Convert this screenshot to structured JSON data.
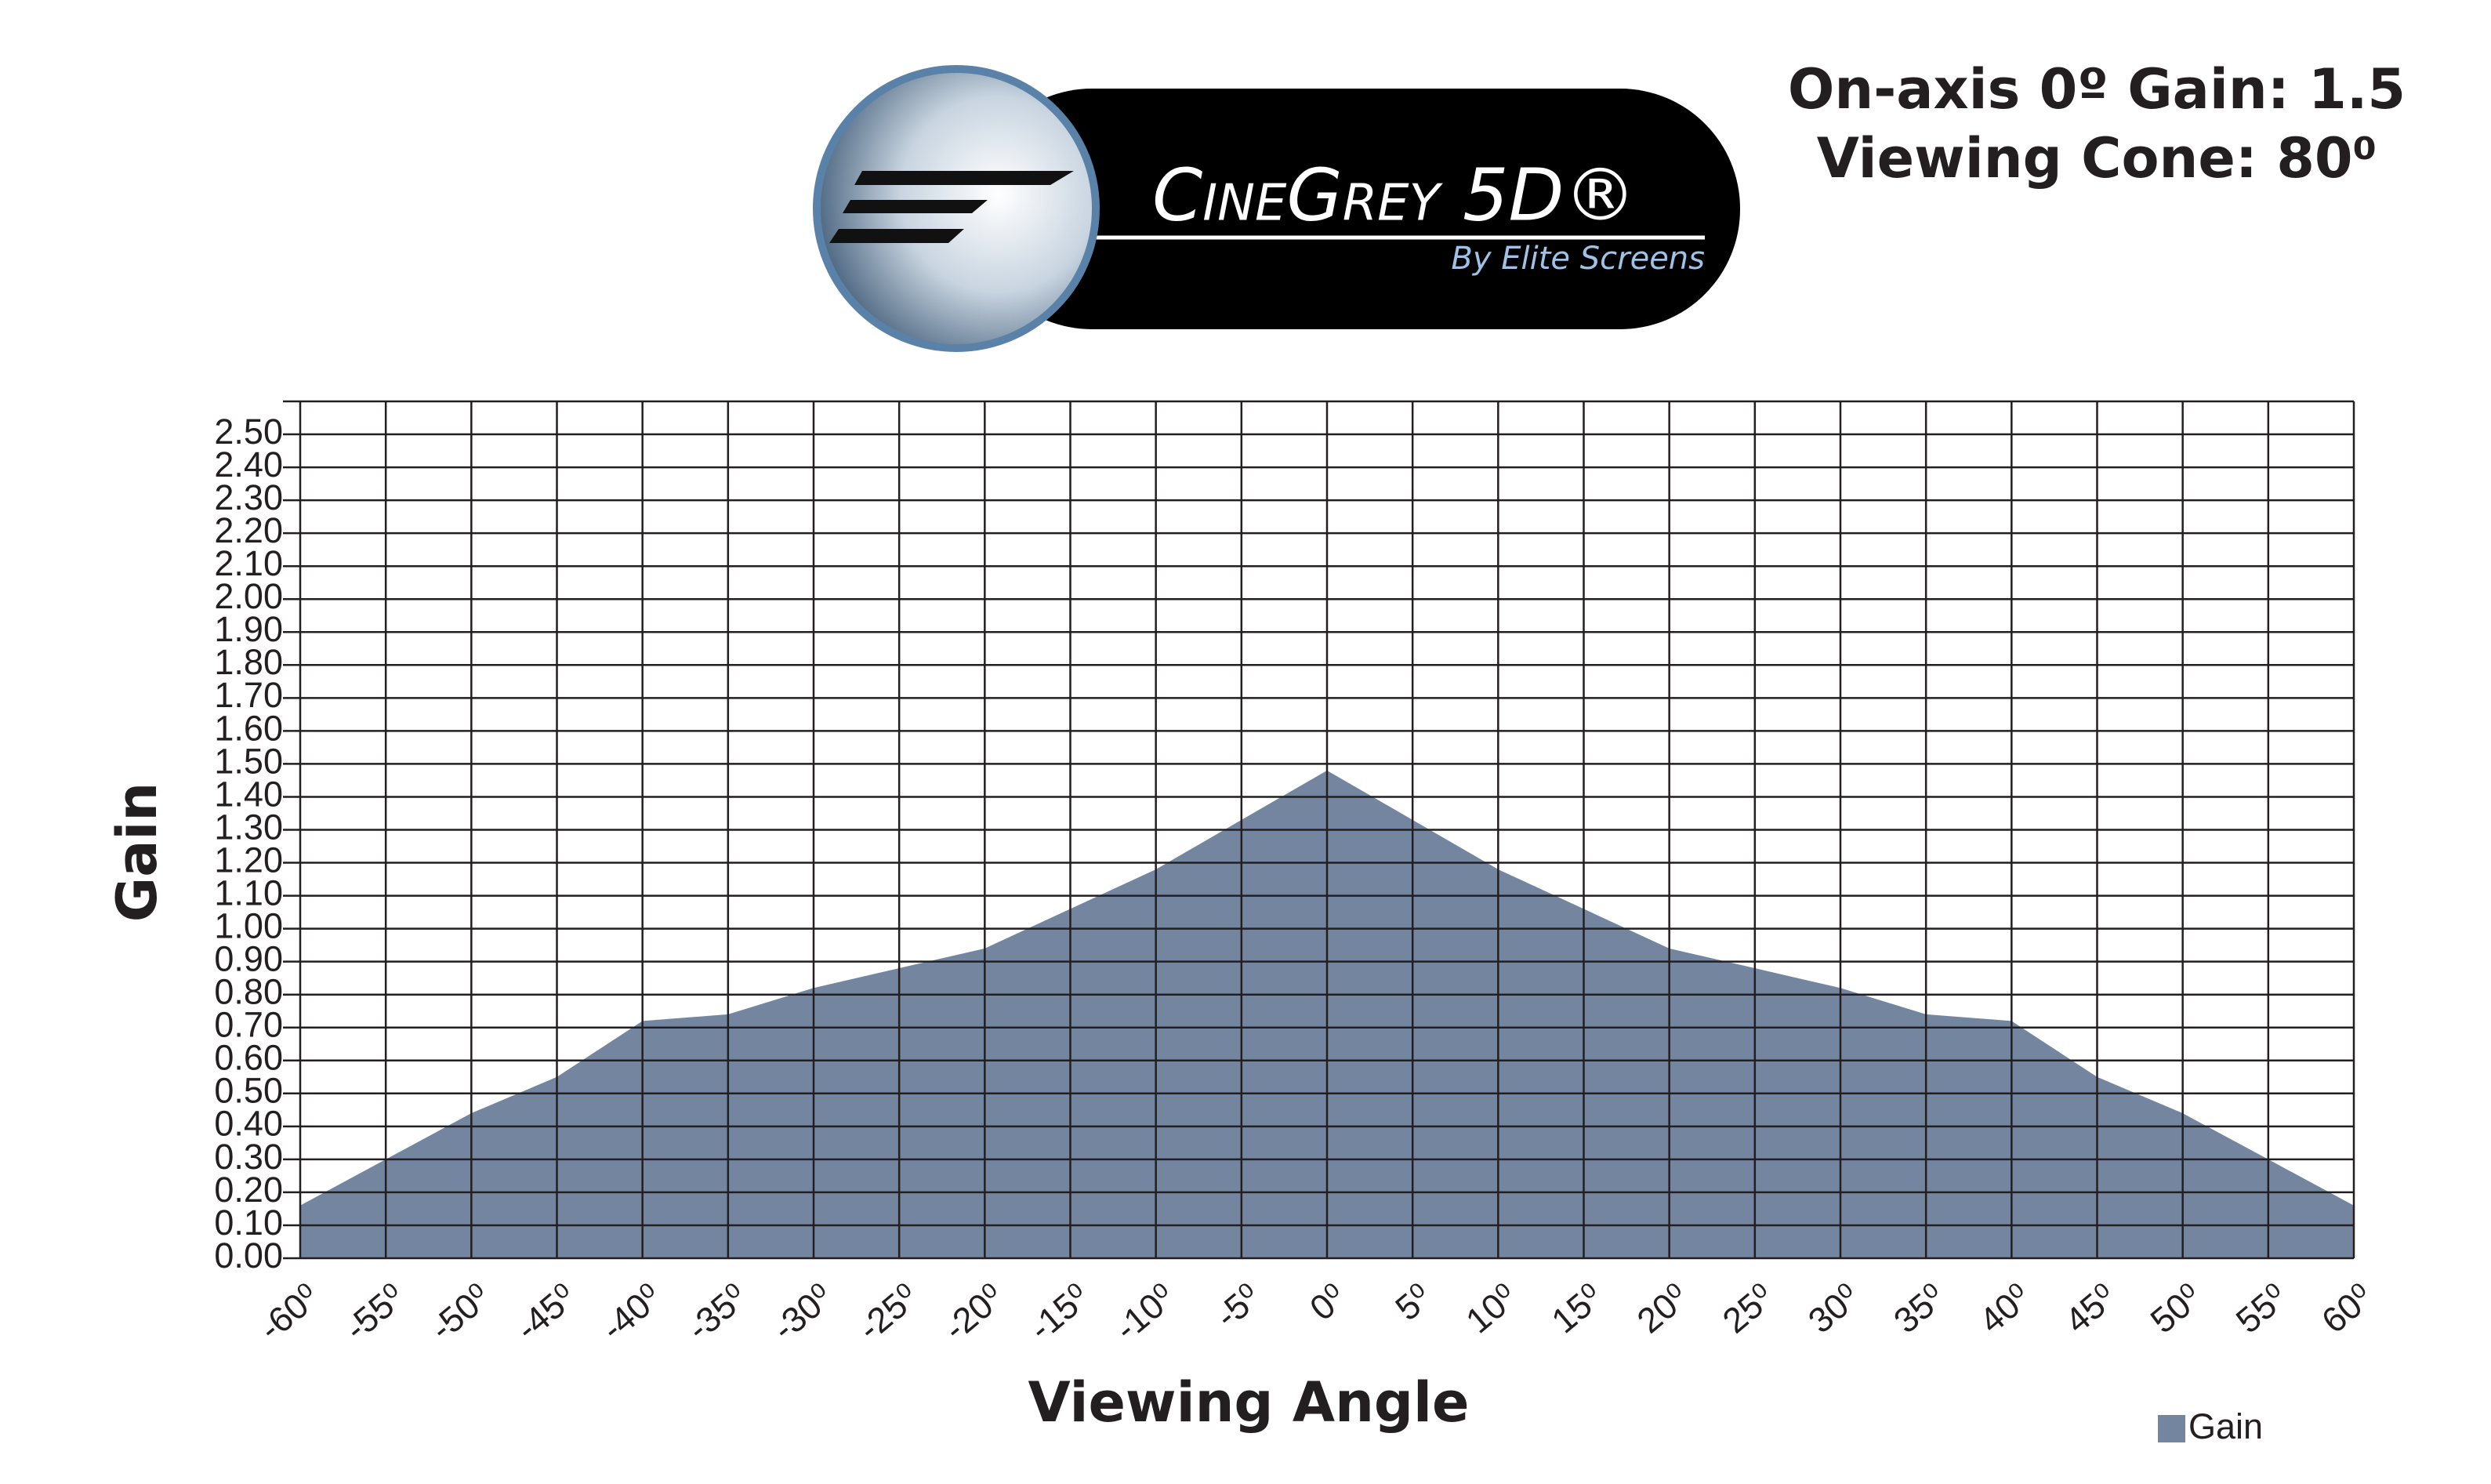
{
  "chart_data": {
    "type": "area",
    "logo_title": "CineGrey 5D®",
    "logo_subtitle": "By Elite Screens",
    "annotations": [
      "On-axis 0º Gain: 1.5",
      "Viewing Cone: 80⁰"
    ],
    "x_label": "Viewing Angle",
    "y_label": "Gain",
    "categories": [
      "-60⁰",
      "-55⁰",
      "-50⁰",
      "-45⁰",
      "-40⁰",
      "-35⁰",
      "-30⁰",
      "-25⁰",
      "-20⁰",
      "-15⁰",
      "-10⁰",
      "-5⁰",
      "0⁰",
      "5⁰",
      "10⁰",
      "15⁰",
      "20⁰",
      "25⁰",
      "30⁰",
      "35⁰",
      "40⁰",
      "45⁰",
      "50⁰",
      "55⁰",
      "60⁰"
    ],
    "series": [
      {
        "name": "Gain",
        "color": "#74869f",
        "values": [
          0.16,
          0.3,
          0.44,
          0.55,
          0.72,
          0.74,
          0.82,
          0.88,
          0.94,
          1.06,
          1.18,
          1.33,
          1.48,
          1.33,
          1.18,
          1.06,
          0.94,
          0.88,
          0.82,
          0.74,
          0.72,
          0.55,
          0.44,
          0.3,
          0.16
        ]
      }
    ],
    "ylim": [
      0,
      2.6
    ],
    "yticks": [
      {
        "value": 0,
        "label": "0.00"
      },
      {
        "value": 0.1,
        "label": "0.10"
      },
      {
        "value": 0.2,
        "label": "0.20"
      },
      {
        "value": 0.3,
        "label": "0.30"
      },
      {
        "value": 0.4,
        "label": "0.40"
      },
      {
        "value": 0.5,
        "label": "0.50"
      },
      {
        "value": 0.6,
        "label": "0.60"
      },
      {
        "value": 0.7,
        "label": "0.70"
      },
      {
        "value": 0.8,
        "label": "0.80"
      },
      {
        "value": 0.9,
        "label": "0.90"
      },
      {
        "value": 1.0,
        "label": "1.00"
      },
      {
        "value": 1.1,
        "label": "1.10"
      },
      {
        "value": 1.2,
        "label": "1.20"
      },
      {
        "value": 1.3,
        "label": "1.30"
      },
      {
        "value": 1.4,
        "label": "1.40"
      },
      {
        "value": 1.5,
        "label": "1.50"
      },
      {
        "value": 1.6,
        "label": "1.60"
      },
      {
        "value": 1.7,
        "label": "1.70"
      },
      {
        "value": 1.8,
        "label": "1.80"
      },
      {
        "value": 1.9,
        "label": "1.90"
      },
      {
        "value": 2.0,
        "label": "2.00"
      },
      {
        "value": 2.1,
        "label": "2.10"
      },
      {
        "value": 2.2,
        "label": "2.20"
      },
      {
        "value": 2.3,
        "label": "2.30"
      },
      {
        "value": 2.4,
        "label": "2.40"
      },
      {
        "value": 2.5,
        "label": "2.50"
      }
    ],
    "grid": true,
    "legend": "bottom-right"
  }
}
